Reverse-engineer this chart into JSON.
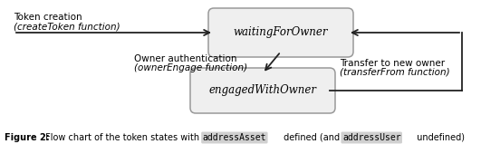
{
  "fig_width": 5.31,
  "fig_height": 1.59,
  "dpi": 100,
  "bg_color": "#ffffff",
  "box_color": "#efefef",
  "box_edge_color": "#999999",
  "box1_label": "waitingForOwner",
  "box2_label": "engagedWithOwner",
  "arrow_color": "#222222",
  "label_token_creation_line1": "Token creation",
  "label_token_creation_line2": "(createToken function)",
  "label_owner_auth_line1": "Owner authentication",
  "label_owner_auth_line2": "(ownerEngage function)",
  "label_transfer_line1": "Transfer to new owner",
  "label_transfer_line2": "(transferFrom function)",
  "caption_bold": "Figure 2:",
  "caption_normal": " Flow chart of the token states with ",
  "caption_mono1": "addressAsset",
  "caption_mid": " defined (and ",
  "caption_mono2": "addressUser",
  "caption_end": " undefined)"
}
